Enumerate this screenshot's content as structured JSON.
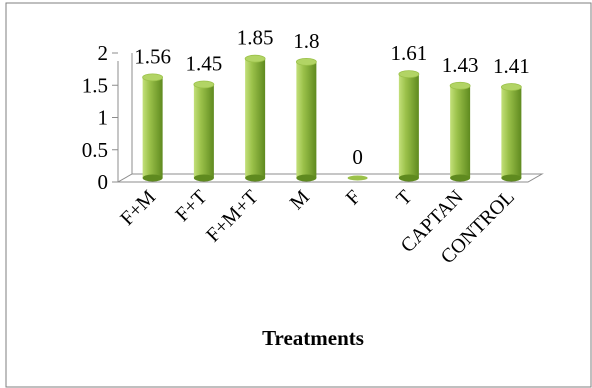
{
  "chart_data": {
    "type": "bar",
    "style": "3d-cylinder",
    "title": "",
    "xlabel": "Treatments",
    "ylabel": "",
    "categories": [
      "F+M",
      "F+T",
      "F+M+T",
      "M",
      "F",
      "T",
      "CAPTAN",
      "CONTROL"
    ],
    "values": [
      1.56,
      1.45,
      1.85,
      1.8,
      0,
      1.61,
      1.43,
      1.41
    ],
    "data_labels": [
      "1.56",
      "1.45",
      "1.85",
      "1.8",
      "0",
      "1.61",
      "1.43",
      "1.41"
    ],
    "ylim": [
      0,
      2
    ],
    "yticks": [
      0,
      0.5,
      1,
      1.5,
      2
    ],
    "ytick_labels": [
      "0",
      "0.5",
      "1",
      "1.5",
      "2"
    ],
    "grid": false,
    "legend": "none",
    "colors": {
      "bar_light": "#c3e07a",
      "bar_mid": "#9bc14a",
      "bar_dark": "#5f8a1f",
      "bar_top": "#b2d465",
      "axis": "#8c8c8c",
      "frame": "#7f7f7f"
    }
  }
}
